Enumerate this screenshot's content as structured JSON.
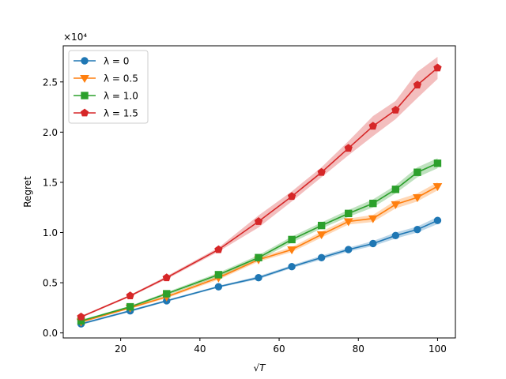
{
  "chart_data": {
    "type": "line",
    "title": "",
    "xlabel": "√T",
    "ylabel": "Regret",
    "y_multiplier_label": "×10⁴",
    "xlim": [
      5.5,
      104.5
    ],
    "ylim": [
      -0.05,
      2.86
    ],
    "x_ticks": [
      20,
      40,
      60,
      80,
      100
    ],
    "x_tick_labels": [
      "20",
      "40",
      "60",
      "80",
      "100"
    ],
    "y_ticks": [
      0.0,
      0.5,
      1.0,
      1.5,
      2.0,
      2.5
    ],
    "y_tick_labels": [
      "0.0",
      "0.5",
      "1.0",
      "1.5",
      "2.0",
      "2.5"
    ],
    "grid": false,
    "legend_position": "top-left",
    "x": [
      10,
      22.4,
      31.6,
      44.7,
      54.8,
      63.2,
      70.7,
      77.5,
      83.7,
      89.4,
      94.9,
      100
    ],
    "series": [
      {
        "name": "λ = 0",
        "color": "#1f77b4",
        "marker": "circle",
        "values": [
          0.09,
          0.22,
          0.32,
          0.46,
          0.55,
          0.66,
          0.75,
          0.83,
          0.89,
          0.97,
          1.03,
          1.12
        ],
        "band": [
          0.01,
          0.01,
          0.01,
          0.01,
          0.015,
          0.015,
          0.02,
          0.02,
          0.025,
          0.03,
          0.03,
          0.035
        ]
      },
      {
        "name": "λ = 0.5",
        "color": "#ff7f0e",
        "marker": "triangle-down",
        "values": [
          0.11,
          0.25,
          0.36,
          0.55,
          0.73,
          0.83,
          0.98,
          1.11,
          1.14,
          1.28,
          1.35,
          1.46
        ],
        "band": [
          0.01,
          0.01,
          0.015,
          0.02,
          0.02,
          0.025,
          0.03,
          0.03,
          0.035,
          0.04,
          0.04,
          0.04
        ]
      },
      {
        "name": "λ = 1.0",
        "color": "#2ca02c",
        "marker": "square",
        "values": [
          0.12,
          0.26,
          0.39,
          0.58,
          0.75,
          0.93,
          1.07,
          1.19,
          1.29,
          1.43,
          1.6,
          1.69
        ],
        "band": [
          0.01,
          0.01,
          0.015,
          0.02,
          0.025,
          0.03,
          0.03,
          0.035,
          0.04,
          0.04,
          0.05,
          0.05
        ]
      },
      {
        "name": "λ = 1.5",
        "color": "#d62728",
        "marker": "pentagon",
        "values": [
          0.16,
          0.37,
          0.55,
          0.83,
          1.11,
          1.36,
          1.6,
          1.84,
          2.06,
          2.22,
          2.47,
          2.64
        ],
        "band": [
          0.01,
          0.01,
          0.015,
          0.02,
          0.06,
          0.05,
          0.05,
          0.07,
          0.1,
          0.09,
          0.13,
          0.11
        ]
      }
    ]
  }
}
